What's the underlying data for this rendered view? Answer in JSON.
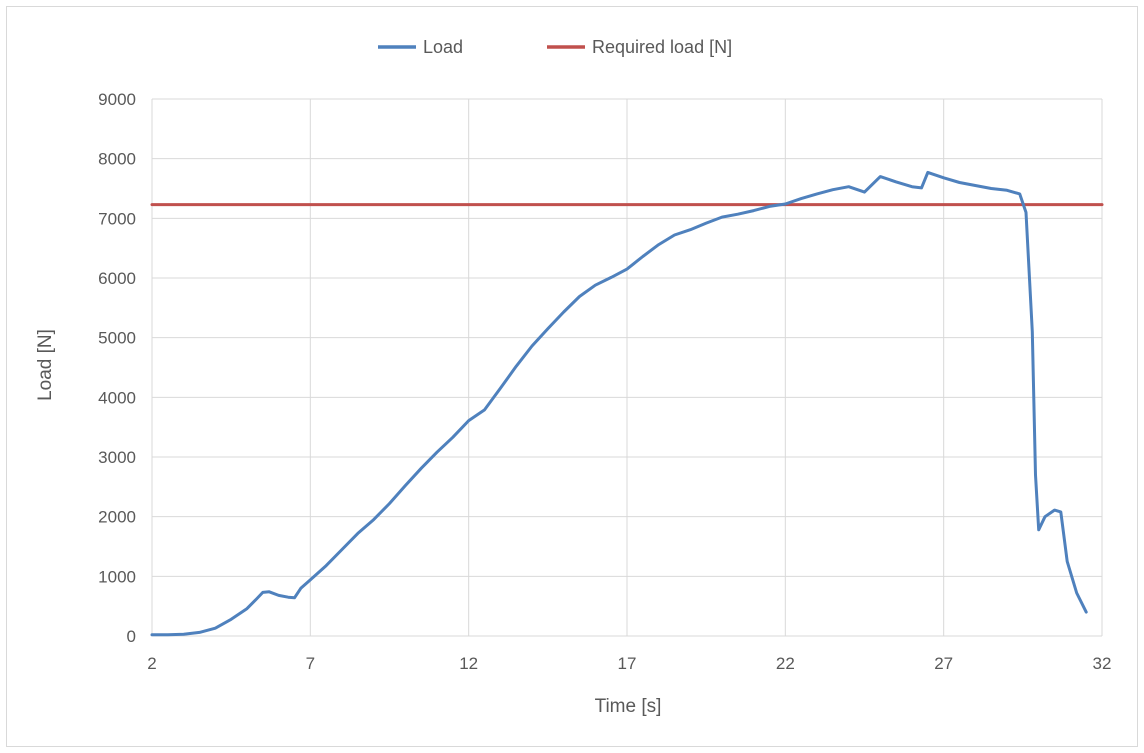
{
  "chart_data": {
    "type": "line",
    "xlabel": "Time [s]",
    "ylabel": "Load [N]",
    "xlim": [
      2,
      32
    ],
    "ylim": [
      0,
      9000
    ],
    "x_ticks": [
      2,
      7,
      12,
      17,
      22,
      27,
      32
    ],
    "y_ticks": [
      0,
      1000,
      2000,
      3000,
      4000,
      5000,
      6000,
      7000,
      8000,
      9000
    ],
    "grid": true,
    "legend_position": "top-center",
    "series": [
      {
        "name": "Load",
        "color": "#4f81bd",
        "points": [
          [
            2.0,
            20
          ],
          [
            2.5,
            20
          ],
          [
            3.0,
            30
          ],
          [
            3.5,
            60
          ],
          [
            4.0,
            130
          ],
          [
            4.5,
            280
          ],
          [
            5.0,
            460
          ],
          [
            5.3,
            620
          ],
          [
            5.5,
            730
          ],
          [
            5.7,
            740
          ],
          [
            6.0,
            680
          ],
          [
            6.3,
            650
          ],
          [
            6.5,
            640
          ],
          [
            6.7,
            800
          ],
          [
            7.0,
            940
          ],
          [
            7.5,
            1180
          ],
          [
            8.0,
            1450
          ],
          [
            8.5,
            1720
          ],
          [
            9.0,
            1950
          ],
          [
            9.5,
            2220
          ],
          [
            10.0,
            2520
          ],
          [
            10.5,
            2810
          ],
          [
            11.0,
            3080
          ],
          [
            11.5,
            3330
          ],
          [
            12.0,
            3610
          ],
          [
            12.5,
            3790
          ],
          [
            13.0,
            4150
          ],
          [
            13.5,
            4520
          ],
          [
            14.0,
            4860
          ],
          [
            14.5,
            5150
          ],
          [
            15.0,
            5430
          ],
          [
            15.5,
            5690
          ],
          [
            16.0,
            5880
          ],
          [
            16.5,
            6010
          ],
          [
            17.0,
            6150
          ],
          [
            17.5,
            6360
          ],
          [
            18.0,
            6560
          ],
          [
            18.5,
            6720
          ],
          [
            19.0,
            6810
          ],
          [
            19.5,
            6920
          ],
          [
            20.0,
            7020
          ],
          [
            20.5,
            7070
          ],
          [
            21.0,
            7130
          ],
          [
            21.5,
            7200
          ],
          [
            22.0,
            7240
          ],
          [
            22.5,
            7330
          ],
          [
            23.0,
            7410
          ],
          [
            23.5,
            7480
          ],
          [
            24.0,
            7530
          ],
          [
            24.5,
            7440
          ],
          [
            25.0,
            7700
          ],
          [
            25.5,
            7610
          ],
          [
            26.0,
            7530
          ],
          [
            26.3,
            7510
          ],
          [
            26.5,
            7770
          ],
          [
            27.0,
            7680
          ],
          [
            27.5,
            7600
          ],
          [
            28.0,
            7550
          ],
          [
            28.5,
            7500
          ],
          [
            29.0,
            7470
          ],
          [
            29.4,
            7410
          ],
          [
            29.6,
            7100
          ],
          [
            29.8,
            5100
          ],
          [
            29.9,
            2700
          ],
          [
            30.0,
            1780
          ],
          [
            30.2,
            2000
          ],
          [
            30.5,
            2110
          ],
          [
            30.7,
            2080
          ],
          [
            30.9,
            1250
          ],
          [
            31.2,
            720
          ],
          [
            31.5,
            400
          ]
        ]
      },
      {
        "name": "Required load [N]",
        "color": "#c0504d",
        "points": [
          [
            2,
            7230
          ],
          [
            32,
            7230
          ]
        ]
      }
    ]
  }
}
